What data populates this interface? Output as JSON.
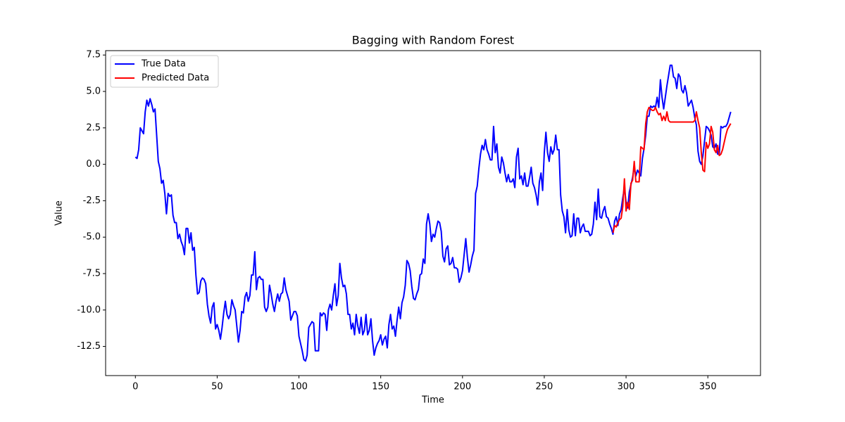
{
  "chart_data": {
    "type": "line",
    "title": "Bagging with Random Forest",
    "xlabel": "Time",
    "ylabel": "Value",
    "xlim": [
      -18.2,
      382.2
    ],
    "ylim": [
      -14.5,
      7.8
    ],
    "xticks": [
      0,
      50,
      100,
      150,
      200,
      250,
      300,
      350
    ],
    "yticks": [
      -12.5,
      {
        "value": -10,
        "label": "-10.0"
      },
      -7.5,
      {
        "value": -5,
        "label": "-5.0"
      },
      -2.5,
      {
        "value": 0,
        "label": "0.0"
      },
      2.5,
      {
        "value": 5,
        "label": "5.0"
      },
      7.5
    ],
    "legend": "upper left",
    "series": [
      {
        "name": "True Data",
        "color": "#0000ff",
        "x": [
          0,
          1,
          2,
          3,
          4,
          5,
          6,
          7,
          8,
          9,
          10,
          11,
          12,
          13,
          14,
          15,
          16,
          17,
          18,
          19,
          20,
          21,
          22,
          23,
          24,
          25,
          26,
          27,
          28,
          29,
          30,
          31,
          32,
          33,
          34,
          35,
          36,
          37,
          38,
          39,
          40,
          41,
          42,
          43,
          44,
          45,
          46,
          47,
          48,
          49,
          50,
          51,
          52,
          53,
          54,
          55,
          56,
          57,
          58,
          59,
          60,
          61,
          62,
          63,
          64,
          65,
          66,
          67,
          68,
          69,
          70,
          71,
          72,
          73,
          74,
          75,
          76,
          77,
          78,
          79,
          80,
          81,
          82,
          83,
          84,
          85,
          86,
          87,
          88,
          89,
          90,
          91,
          92,
          93,
          94,
          95,
          96,
          97,
          98,
          99,
          100,
          101,
          102,
          103,
          104,
          105,
          106,
          107,
          108,
          109,
          110,
          111,
          112,
          113,
          114,
          115,
          116,
          117,
          118,
          119,
          120,
          121,
          122,
          123,
          124,
          125,
          126,
          127,
          128,
          129,
          130,
          131,
          132,
          133,
          134,
          135,
          136,
          137,
          138,
          139,
          140,
          141,
          142,
          143,
          144,
          145,
          146,
          147,
          148,
          149,
          150,
          151,
          152,
          153,
          154,
          155,
          156,
          157,
          158,
          159,
          160,
          161,
          162,
          163,
          164,
          165,
          166,
          167,
          168,
          169,
          170,
          171,
          172,
          173,
          174,
          175,
          176,
          177,
          178,
          179,
          180,
          181,
          182,
          183,
          184,
          185,
          186,
          187,
          188,
          189,
          190,
          191,
          192,
          193,
          194,
          195,
          196,
          197,
          198,
          199,
          200,
          201,
          202,
          203,
          204,
          205,
          206,
          207,
          208,
          209,
          210,
          211,
          212,
          213,
          214,
          215,
          216,
          217,
          218,
          219,
          220,
          221,
          222,
          223,
          224,
          225,
          226,
          227,
          228,
          229,
          230,
          231,
          232,
          233,
          234,
          235,
          236,
          237,
          238,
          239,
          240,
          241,
          242,
          243,
          244,
          245,
          246,
          247,
          248,
          249,
          250,
          251,
          252,
          253,
          254,
          255,
          256,
          257,
          258,
          259,
          260,
          261,
          262,
          263,
          264,
          265,
          266,
          267,
          268,
          269,
          270,
          271,
          272,
          273,
          274,
          275,
          276,
          277,
          278,
          279,
          280,
          281,
          282,
          283,
          284,
          285,
          286,
          287,
          288,
          289,
          290,
          291,
          292,
          293,
          294,
          295,
          296,
          297,
          298,
          299,
          300,
          301,
          302,
          303,
          304,
          305,
          306,
          307,
          308,
          309,
          310,
          311,
          312,
          313,
          314,
          315,
          316,
          317,
          318,
          319,
          320,
          321,
          322,
          323,
          324,
          325,
          326,
          327,
          328,
          329,
          330,
          331,
          332,
          333,
          334,
          335,
          336,
          337,
          338,
          339,
          340,
          341,
          342,
          343,
          344,
          345,
          346,
          347,
          348,
          349,
          350,
          351,
          352,
          353,
          354,
          355,
          356,
          357,
          358,
          359,
          360,
          361,
          362,
          363,
          364
        ],
        "values": [
          0.5,
          0.4,
          1.0,
          2.5,
          2.3,
          2.1,
          3.6,
          4.4,
          4.0,
          4.5,
          4.1,
          3.6,
          3.8,
          2.0,
          0.2,
          -0.3,
          -1.3,
          -1.1,
          -2.0,
          -3.4,
          -2.0,
          -2.2,
          -2.1,
          -3.5,
          -4.0,
          -4.0,
          -5.1,
          -4.8,
          -5.3,
          -5.6,
          -6.2,
          -4.4,
          -4.4,
          -5.4,
          -4.7,
          -5.9,
          -5.7,
          -7.6,
          -8.9,
          -8.8,
          -8.0,
          -7.8,
          -7.9,
          -8.2,
          -9.6,
          -10.4,
          -10.9,
          -9.8,
          -9.5,
          -11.3,
          -11.0,
          -11.4,
          -12.0,
          -11.2,
          -10.2,
          -9.4,
          -10.3,
          -10.6,
          -10.3,
          -9.3,
          -9.7,
          -10.0,
          -11.1,
          -12.2,
          -11.4,
          -10.1,
          -10.2,
          -9.1,
          -8.8,
          -9.4,
          -9.0,
          -7.6,
          -7.6,
          -6.0,
          -8.6,
          -7.8,
          -7.7,
          -7.9,
          -7.9,
          -9.8,
          -10.1,
          -9.8,
          -8.3,
          -8.9,
          -9.6,
          -10.1,
          -9.4,
          -8.9,
          -9.4,
          -8.9,
          -8.8,
          -7.8,
          -8.6,
          -9.0,
          -9.4,
          -10.7,
          -10.4,
          -10.1,
          -10.1,
          -10.4,
          -11.8,
          -12.3,
          -12.8,
          -13.4,
          -13.5,
          -13.1,
          -11.2,
          -11.0,
          -10.8,
          -10.9,
          -12.8,
          -12.8,
          -12.8,
          -10.2,
          -10.4,
          -10.2,
          -10.3,
          -11.4,
          -10.0,
          -9.6,
          -10.0,
          -9.0,
          -8.2,
          -9.7,
          -9.0,
          -6.8,
          -7.8,
          -8.4,
          -8.3,
          -8.9,
          -10.3,
          -10.3,
          -11.3,
          -10.9,
          -11.7,
          -10.3,
          -11.1,
          -11.6,
          -10.5,
          -11.7,
          -11.4,
          -10.3,
          -11.7,
          -11.4,
          -10.6,
          -12.1,
          -13.1,
          -12.6,
          -12.3,
          -12.1,
          -11.7,
          -12.4,
          -12.0,
          -11.8,
          -12.6,
          -11.0,
          -10.3,
          -11.3,
          -11.1,
          -11.8,
          -10.7,
          -9.8,
          -10.6,
          -9.5,
          -9.1,
          -8.3,
          -6.6,
          -6.8,
          -7.3,
          -8.4,
          -9.2,
          -9.3,
          -8.9,
          -8.6,
          -7.6,
          -7.5,
          -6.5,
          -6.8,
          -4.1,
          -3.4,
          -4.1,
          -5.3,
          -4.8,
          -5.0,
          -4.4,
          -3.9,
          -4.0,
          -4.6,
          -6.3,
          -6.7,
          -5.8,
          -5.6,
          -6.9,
          -6.8,
          -6.4,
          -7.1,
          -7.1,
          -7.2,
          -8.1,
          -7.8,
          -7.3,
          -6.2,
          -5.1,
          -6.4,
          -7.4,
          -6.9,
          -6.3,
          -5.9,
          -2.0,
          -1.5,
          -0.3,
          0.7,
          1.3,
          1.0,
          1.7,
          1.0,
          0.7,
          0.3,
          0.3,
          2.6,
          0.8,
          1.4,
          -0.2,
          -0.6,
          0.5,
          0.1,
          -0.6,
          -1.2,
          -0.7,
          -1.2,
          -1.2,
          -1.0,
          -1.6,
          0.5,
          1.1,
          -1.0,
          -0.8,
          -1.4,
          -0.6,
          -1.5,
          -1.5,
          -0.9,
          -0.2,
          -1.3,
          -1.6,
          -2.1,
          -2.8,
          -1.2,
          -0.6,
          -1.8,
          0.8,
          2.2,
          0.8,
          0.2,
          1.2,
          0.7,
          1.0,
          2.0,
          1.0,
          1.0,
          -2.1,
          -3.2,
          -3.6,
          -4.7,
          -3.1,
          -4.5,
          -5.0,
          -4.9,
          -3.4,
          -4.9,
          -3.7,
          -3.7,
          -4.7,
          -4.3,
          -4.1,
          -4.6,
          -4.6,
          -4.6,
          -4.9,
          -4.8,
          -4.1,
          -2.6,
          -3.8,
          -1.7,
          -3.6,
          -3.7,
          -3.2,
          -2.9,
          -3.6,
          -3.7,
          -4.1,
          -4.4,
          -4.8,
          -3.9,
          -3.6,
          -4.2,
          -3.4,
          -3.1,
          -2.3,
          -1.6,
          -2.6,
          -3.0,
          -1.9,
          -1.4,
          -0.9,
          -0.2,
          -0.8,
          -0.4,
          -0.6,
          -0.8,
          0.4,
          1.1,
          2.0,
          3.3,
          3.3,
          4.0,
          3.9,
          4.0,
          3.9,
          4.6,
          3.9,
          5.8,
          4.6,
          3.8,
          4.6,
          5.4,
          6.1,
          6.8,
          6.8,
          6.0,
          5.9,
          5.2,
          6.2,
          6.0,
          5.1,
          4.9,
          5.4,
          4.9,
          4.0,
          4.2,
          4.4,
          3.9,
          3.2,
          2.7,
          0.9,
          0.2,
          0.0,
          0.6,
          1.6,
          2.6,
          2.5,
          2.3,
          2.0,
          1.2,
          1.1,
          1.4,
          0.7,
          0.7,
          2.6,
          2.5,
          2.6,
          2.6,
          2.8,
          3.2,
          3.6
        ]
      },
      {
        "name": "Predicted Data",
        "color": "#ff0000",
        "x": [
          292,
          293,
          294,
          295,
          296,
          297,
          298,
          299,
          300,
          301,
          302,
          303,
          304,
          305,
          306,
          307,
          308,
          309,
          310,
          311,
          312,
          313,
          314,
          315,
          316,
          317,
          318,
          319,
          320,
          321,
          322,
          323,
          324,
          325,
          326,
          327,
          328,
          329,
          330,
          331,
          332,
          333,
          334,
          335,
          336,
          337,
          338,
          339,
          340,
          341,
          342,
          343,
          344,
          345,
          346,
          347,
          348,
          349,
          350,
          351,
          352,
          353,
          354,
          355,
          356,
          357,
          358,
          359,
          360,
          361,
          362,
          363,
          364
        ],
        "values": [
          -4.7,
          -4.2,
          -4.3,
          -4.0,
          -3.8,
          -3.7,
          -2.9,
          -1.0,
          -3.2,
          -2.6,
          -3.1,
          -1.3,
          -1.1,
          0.2,
          -1.2,
          -1.2,
          -1.2,
          1.2,
          1.1,
          1.0,
          2.8,
          3.6,
          3.9,
          3.8,
          3.7,
          3.7,
          3.9,
          3.6,
          3.4,
          3.5,
          3.0,
          3.3,
          3.0,
          3.6,
          3.0,
          2.9,
          2.9,
          2.9,
          2.9,
          2.9,
          2.9,
          2.9,
          2.9,
          2.9,
          2.9,
          2.9,
          2.9,
          2.9,
          2.9,
          2.9,
          3.0,
          3.6,
          3.0,
          2.5,
          0.8,
          -0.4,
          -0.5,
          1.5,
          1.1,
          1.4,
          2.6,
          2.2,
          1.0,
          0.8,
          1.3,
          0.6,
          0.7,
          1.0,
          1.5,
          2.0,
          2.4,
          2.6,
          2.8
        ]
      }
    ]
  }
}
